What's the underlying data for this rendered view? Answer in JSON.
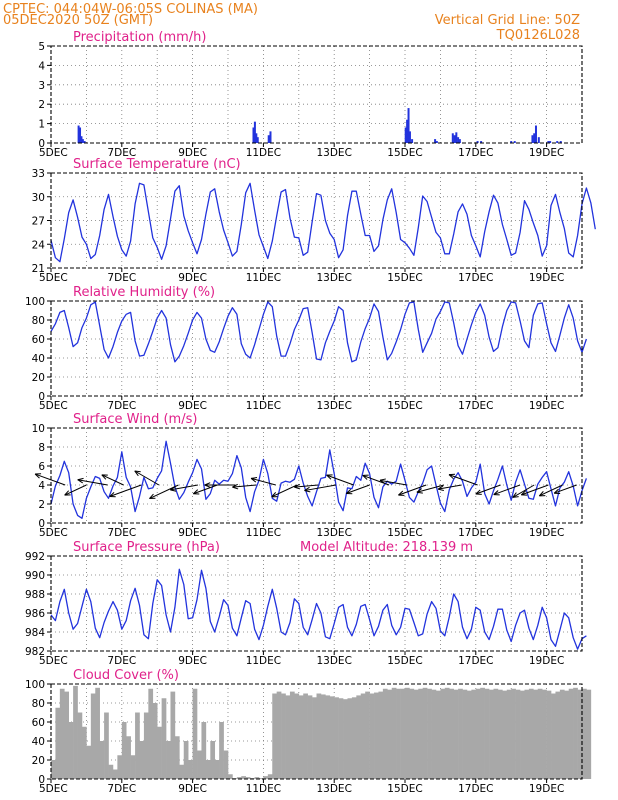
{
  "header": {
    "line1": "CPTEC:   044:04W-06:05S   COLINAS (MA)",
    "line2": "05DEC2020 50Z (GMT)",
    "grid_note": "Vertical Grid Line: 50Z",
    "code": "TQ0126L028"
  },
  "colors": {
    "header": "#e8821e",
    "title": "#e0218a",
    "series": "#2233dd",
    "cloud": "#a8a8a8",
    "grid": "#7a7a7a"
  },
  "chart_data": [
    {
      "id": "precip",
      "type": "bar",
      "title": "Precipitation (mm/h)",
      "ylim": [
        0,
        5
      ],
      "yticks": [
        0,
        1,
        2,
        3,
        4,
        5
      ],
      "x_tick_labels": [
        "5DEC",
        "7DEC",
        "9DEC",
        "11DEC",
        "13DEC",
        "15DEC",
        "17DEC",
        "19DEC"
      ],
      "x_range_days": [
        0,
        15
      ],
      "x": [
        0.78,
        0.82,
        0.86,
        0.9,
        0.95,
        5.72,
        5.76,
        5.8,
        5.84,
        6.15,
        6.2,
        10.02,
        10.06,
        10.1,
        10.14,
        10.2,
        10.85,
        10.9,
        11.35,
        11.4,
        11.45,
        11.5,
        11.55,
        12.05,
        12.15,
        13.0,
        13.1,
        13.6,
        13.65,
        13.7,
        13.78,
        14.05,
        14.1,
        14.3,
        14.4
      ],
      "values": [
        0.9,
        0.8,
        0.35,
        0.2,
        0.1,
        0.8,
        1.1,
        0.5,
        0.3,
        0.4,
        0.6,
        0.8,
        1.2,
        1.8,
        0.6,
        0.2,
        0.2,
        0.1,
        0.5,
        0.4,
        0.55,
        0.3,
        0.2,
        0.1,
        0.1,
        0.1,
        0.1,
        0.4,
        0.5,
        0.9,
        0.3,
        0.1,
        0.1,
        0.1,
        0.1
      ]
    },
    {
      "id": "temp",
      "type": "line",
      "title": "Surface Temperature (nC)",
      "ylim": [
        21,
        33
      ],
      "yticks": [
        21,
        24,
        27,
        30,
        33
      ],
      "x_tick_labels": [
        "5DEC",
        "7DEC",
        "9DEC",
        "11DEC",
        "13DEC",
        "15DEC",
        "17DEC",
        "19DEC"
      ],
      "x_range_days": [
        0,
        15
      ],
      "step_days": 0.125,
      "values": [
        24.5,
        22.3,
        21.8,
        24.7,
        28.0,
        29.6,
        27.4,
        24.9,
        24.0,
        22.2,
        22.7,
        25.1,
        28.4,
        30.3,
        27.5,
        25.0,
        23.3,
        22.5,
        24.4,
        29.1,
        31.7,
        31.5,
        28.1,
        24.8,
        23.6,
        22.1,
        23.8,
        27.2,
        30.7,
        31.4,
        27.6,
        25.7,
        24.2,
        22.8,
        24.6,
        27.8,
        30.6,
        31.0,
        28.1,
        25.8,
        24.2,
        22.5,
        23.1,
        26.5,
        30.5,
        31.7,
        28.3,
        25.2,
        23.7,
        22.2,
        24.4,
        27.6,
        30.6,
        30.9,
        27.3,
        24.9,
        24.8,
        22.6,
        23.0,
        26.8,
        30.4,
        30.2,
        27.0,
        25.4,
        24.6,
        22.3,
        23.3,
        27.6,
        30.7,
        30.7,
        27.8,
        25.1,
        25.1,
        23.1,
        23.8,
        27.1,
        29.6,
        31.0,
        28.0,
        24.6,
        24.2,
        23.5,
        22.6,
        26.1,
        30.1,
        29.4,
        27.4,
        25.5,
        24.8,
        22.8,
        22.8,
        25.3,
        28.1,
        29.1,
        27.8,
        25.1,
        23.8,
        22.4,
        25.6,
        28.1,
        30.2,
        29.2,
        26.5,
        24.6,
        22.6,
        22.9,
        25.5,
        29.5,
        28.4,
        26.7,
        25.1,
        22.5,
        23.8,
        28.9,
        30.3,
        28.0,
        26.0,
        22.9,
        22.4,
        25.1,
        29.1,
        31.1,
        29.2,
        25.9
      ]
    },
    {
      "id": "rh",
      "type": "line",
      "title": "Relative Humidity (%)",
      "ylim": [
        0,
        100
      ],
      "yticks": [
        0,
        20,
        40,
        60,
        80,
        100
      ],
      "x_tick_labels": [
        "5DEC",
        "7DEC",
        "9DEC",
        "11DEC",
        "13DEC",
        "15DEC",
        "17DEC",
        "19DEC"
      ],
      "x_range_days": [
        0,
        15
      ],
      "step_days": 0.125,
      "values": [
        68,
        76,
        88,
        90,
        72,
        52,
        56,
        72,
        82,
        96,
        99,
        74,
        49,
        40,
        52,
        67,
        79,
        86,
        88,
        58,
        42,
        43,
        55,
        68,
        82,
        90,
        82,
        54,
        36,
        42,
        53,
        66,
        80,
        88,
        82,
        60,
        48,
        46,
        57,
        71,
        84,
        93,
        86,
        55,
        44,
        40,
        54,
        70,
        86,
        99,
        94,
        63,
        42,
        42,
        55,
        70,
        80,
        92,
        93,
        67,
        39,
        38,
        56,
        68,
        79,
        94,
        90,
        56,
        36,
        38,
        57,
        71,
        82,
        97,
        89,
        62,
        38,
        45,
        57,
        70,
        86,
        98,
        99,
        70,
        46,
        56,
        66,
        81,
        89,
        99,
        98,
        77,
        53,
        44,
        60,
        75,
        88,
        97,
        85,
        62,
        47,
        51,
        73,
        90,
        99,
        98,
        79,
        58,
        51,
        85,
        97,
        98,
        76,
        56,
        47,
        64,
        82,
        96,
        82,
        58,
        46,
        60
      ]
    },
    {
      "id": "wind",
      "type": "line",
      "title": "Surface Wind (m/s)",
      "ylim": [
        0,
        10
      ],
      "yticks": [
        0,
        2,
        4,
        6,
        8,
        10
      ],
      "x_tick_labels": [
        "5DEC",
        "7DEC",
        "9DEC",
        "11DEC",
        "13DEC",
        "15DEC",
        "17DEC",
        "19DEC"
      ],
      "x_range_days": [
        0,
        15
      ],
      "step_days": 0.125,
      "values": [
        2.0,
        3.9,
        5.0,
        6.5,
        5.3,
        2.0,
        0.8,
        0.5,
        2.6,
        3.8,
        4.9,
        4.7,
        3.3,
        2.6,
        3.9,
        4.8,
        7.5,
        4.8,
        3.8,
        1.2,
        2.8,
        4.8,
        3.6,
        3.7,
        4.7,
        5.5,
        8.6,
        6.3,
        3.8,
        2.5,
        3.2,
        4.3,
        5.3,
        6.7,
        5.7,
        2.5,
        3.1,
        4.5,
        4.1,
        4.5,
        4.4,
        5.2,
        7.1,
        5.8,
        2.7,
        1.2,
        3.3,
        4.5,
        6.7,
        5.2,
        2.6,
        2.3,
        4.2,
        4.4,
        4.3,
        4.6,
        6.0,
        4.2,
        2.8,
        1.8,
        3.3,
        4.7,
        4.8,
        7.7,
        5.2,
        2.2,
        1.3,
        3.7,
        3.6,
        4.9,
        4.5,
        6.3,
        5.2,
        2.7,
        1.6,
        3.8,
        4.4,
        4.1,
        4.4,
        6.2,
        4.5,
        2.7,
        2.2,
        3.3,
        4.2,
        5.6,
        6.0,
        4.0,
        2.1,
        1.2,
        3.5,
        4.6,
        5.3,
        4.4,
        2.8,
        3.7,
        4.3,
        6.2,
        3.1,
        2.0,
        3.4,
        4.6,
        6.0,
        4.0,
        2.4,
        4.3,
        5.6,
        4.1,
        2.6,
        2.5,
        4.1,
        4.8,
        5.4,
        3.6,
        1.8,
        3.7,
        4.3,
        5.4,
        3.9,
        1.8,
        3.4,
        4.7
      ],
      "vectors": {
        "x": [
          0.4,
          1.0,
          1.6,
          2.05,
          2.55,
          3.05,
          3.6,
          4.15,
          4.7,
          5.2,
          5.8,
          6.35,
          6.95,
          7.55,
          8.05,
          8.55,
          9.0,
          9.55,
          10.05,
          10.6,
          11.1,
          11.6,
          12.05,
          12.7,
          13.25,
          13.65,
          14.05,
          14.45,
          14.85
        ],
        "mag": [
          4.0,
          3.0,
          3.8,
          3.0,
          4.2,
          3.5,
          4.0,
          3.5,
          3.2,
          3.8,
          3.0,
          3.2,
          3.5,
          3.0,
          4.0,
          3.6,
          3.1,
          3.5,
          3.4,
          3.7,
          3.5,
          3.0,
          3.8,
          3.3,
          3.5,
          3.1,
          3.6,
          3.2,
          3.0
        ],
        "dir_deg": [
          160,
          205,
          170,
          155,
          200,
          150,
          205,
          190,
          200,
          180,
          185,
          165,
          205,
          185,
          190,
          160,
          200,
          160,
          170,
          200,
          195,
          190,
          160,
          200,
          200,
          210,
          200,
          205,
          200
        ]
      }
    },
    {
      "id": "pressure",
      "type": "line",
      "title": "Surface Pressure (hPa)",
      "annotation": "Model Altitude: 218.139 m",
      "ylim": [
        982,
        992
      ],
      "yticks": [
        982,
        984,
        986,
        988,
        990,
        992
      ],
      "x_tick_labels": [
        "5DEC",
        "7DEC",
        "9DEC",
        "11DEC",
        "13DEC",
        "15DEC",
        "17DEC",
        "19DEC"
      ],
      "x_range_days": [
        0,
        15
      ],
      "step_days": 0.125,
      "values": [
        985.8,
        985.2,
        987.2,
        988.5,
        986.0,
        984.3,
        984.9,
        986.7,
        988.5,
        987.2,
        984.4,
        983.4,
        985.0,
        986.2,
        987.2,
        986.3,
        984.3,
        985.2,
        987.3,
        988.6,
        986.8,
        983.7,
        983.3,
        987.0,
        989.5,
        988.9,
        985.8,
        984.0,
        986.6,
        990.6,
        989.0,
        985.4,
        985.5,
        987.4,
        990.5,
        988.6,
        985.1,
        984.0,
        985.6,
        987.4,
        986.8,
        984.4,
        983.6,
        985.5,
        987.3,
        987.0,
        984.3,
        983.2,
        984.7,
        986.7,
        988.5,
        986.5,
        984.0,
        983.7,
        985.0,
        987.5,
        987.0,
        984.5,
        983.7,
        985.3,
        987.0,
        986.0,
        983.5,
        983.3,
        984.9,
        986.6,
        986.9,
        984.5,
        983.6,
        984.8,
        986.7,
        986.9,
        985.3,
        983.6,
        984.6,
        986.3,
        986.9,
        984.7,
        983.7,
        984.5,
        986.5,
        986.4,
        985.0,
        983.6,
        983.8,
        985.9,
        987.2,
        986.5,
        984.1,
        983.6,
        985.6,
        988.0,
        987.2,
        984.5,
        983.3,
        984.3,
        986.6,
        986.3,
        984.0,
        983.2,
        984.6,
        986.4,
        986.4,
        984.2,
        983.0,
        984.7,
        986.0,
        986.3,
        984.4,
        983.2,
        984.7,
        986.6,
        985.5,
        983.2,
        982.5,
        984.2,
        986.0,
        985.5,
        983.4,
        982.2,
        983.3,
        983.6
      ]
    },
    {
      "id": "cloud",
      "type": "area",
      "title": "Cloud Cover (%)",
      "ylim": [
        0,
        100
      ],
      "yticks": [
        0,
        20,
        40,
        60,
        80,
        100
      ],
      "x_tick_labels": [
        "5DEC",
        "7DEC",
        "9DEC",
        "11DEC",
        "13DEC",
        "15DEC",
        "17DEC",
        "19DEC"
      ],
      "x_range_days": [
        0,
        15
      ],
      "step_days": 0.125,
      "values": [
        20,
        75,
        95,
        92,
        60,
        98,
        70,
        55,
        35,
        90,
        96,
        40,
        70,
        15,
        10,
        25,
        60,
        45,
        25,
        70,
        40,
        70,
        95,
        80,
        55,
        85,
        40,
        92,
        45,
        15,
        40,
        20,
        95,
        30,
        60,
        20,
        40,
        20,
        60,
        30,
        5,
        1,
        2,
        3,
        2,
        1,
        2,
        1,
        3,
        5,
        90,
        92,
        90,
        88,
        92,
        90,
        88,
        90,
        88,
        86,
        90,
        89,
        88,
        87,
        86,
        85,
        84,
        85,
        86,
        88,
        90,
        92,
        90,
        91,
        92,
        95,
        94,
        96,
        95,
        95,
        96,
        95,
        94,
        95,
        96,
        95,
        94,
        93,
        95,
        96,
        95,
        94,
        95,
        94,
        93,
        94,
        95,
        96,
        95,
        94,
        95,
        94,
        93,
        94,
        95,
        94,
        93,
        94,
        95,
        94,
        95,
        94,
        93,
        90,
        92,
        94,
        93,
        95,
        96,
        94,
        95,
        94
      ]
    }
  ]
}
